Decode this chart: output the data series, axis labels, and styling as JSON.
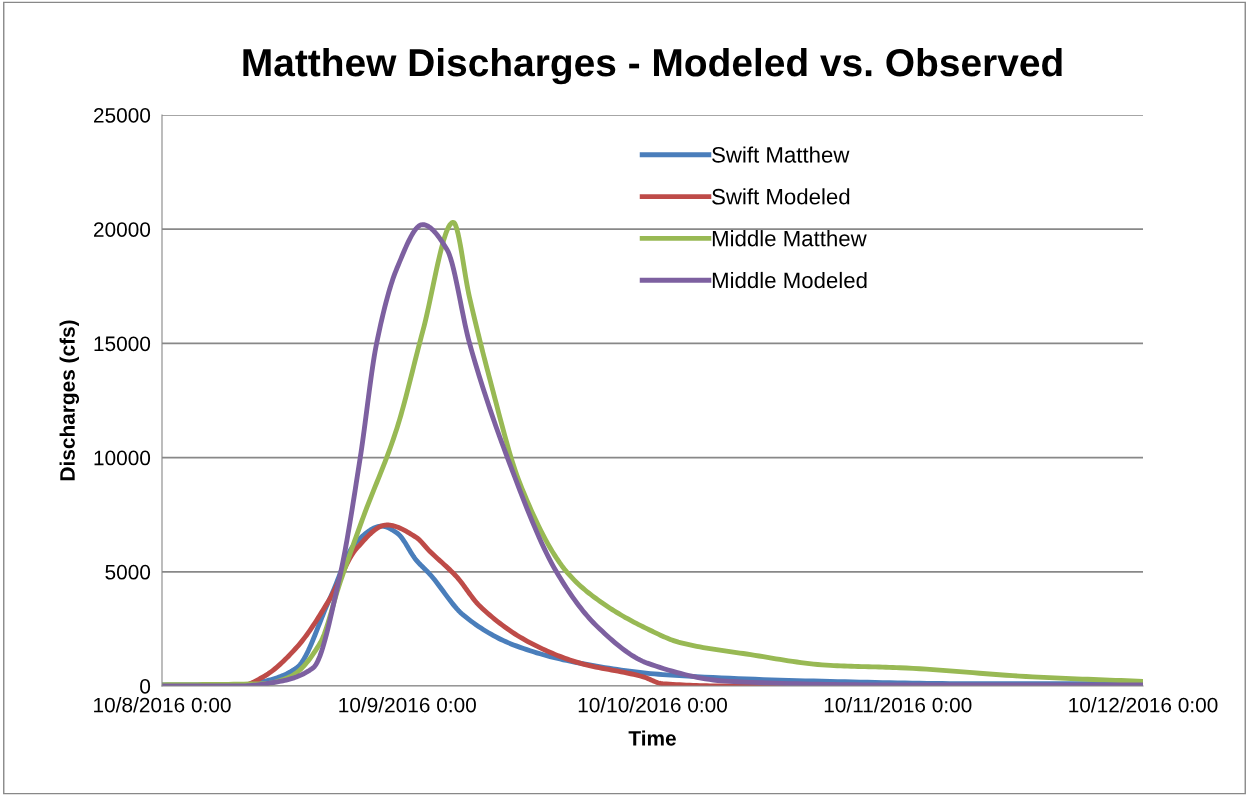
{
  "chart_data": {
    "type": "line",
    "title": "Matthew Discharges - Modeled vs. Observed",
    "xlabel": "Time",
    "ylabel": "Discharges (cfs)",
    "xlim": [
      "2016-10-08T00:00",
      "2016-10-12T00:00"
    ],
    "xticks": [
      {
        "value": "2016-10-08T00:00",
        "label": "10/8/2016 0:00"
      },
      {
        "value": "2016-10-09T00:00",
        "label": "10/9/2016 0:00"
      },
      {
        "value": "2016-10-10T00:00",
        "label": "10/10/2016 0:00"
      },
      {
        "value": "2016-10-11T00:00",
        "label": "10/11/2016 0:00"
      },
      {
        "value": "2016-10-12T00:00",
        "label": "10/12/2016 0:00"
      }
    ],
    "ylim": [
      0,
      25000
    ],
    "yticks": [
      0,
      5000,
      10000,
      15000,
      20000,
      25000
    ],
    "grid": "y",
    "legend": "top right",
    "marker": "none",
    "line_style": "solid",
    "series": [
      {
        "name": "Swift Matthew",
        "color": "#4a7ebb",
        "x": [
          "2016-10-08T00:00",
          "2016-10-08T08:00",
          "2016-10-08T10:00",
          "2016-10-08T13:12",
          "2016-10-08T16:24",
          "2016-10-08T19:00",
          "2016-10-08T21:30",
          "2016-10-08T23:00",
          "2016-10-09T00:54",
          "2016-10-09T02:12",
          "2016-10-09T05:30",
          "2016-10-09T10:24",
          "2016-10-09T16:54",
          "2016-10-10T01:00",
          "2016-10-10T17:24",
          "2016-10-11T08:00",
          "2016-10-12T00:00"
        ],
        "values": [
          50,
          50,
          200,
          800,
          3800,
          6300,
          7000,
          6700,
          5500,
          4900,
          3100,
          1800,
          1000,
          500,
          200,
          100,
          100
        ]
      },
      {
        "name": "Swift Modeled",
        "color": "#be4b48",
        "x": [
          "2016-10-08T00:00",
          "2016-10-08T08:00",
          "2016-10-08T09:54",
          "2016-10-08T13:12",
          "2016-10-08T16:24",
          "2016-10-08T19:00",
          "2016-10-08T22:00",
          "2016-10-09T00:54",
          "2016-10-09T02:12",
          "2016-10-09T04:48",
          "2016-10-09T07:06",
          "2016-10-09T12:00",
          "2016-10-09T16:54",
          "2016-10-09T23:06",
          "2016-10-10T01:00",
          "2016-10-10T07:36",
          "2016-10-12T00:00"
        ],
        "values": [
          0,
          50,
          400,
          1700,
          3800,
          6000,
          7050,
          6500,
          5900,
          4800,
          3500,
          1900,
          1000,
          400,
          100,
          0,
          0
        ]
      },
      {
        "name": "Middle Matthew",
        "color": "#98b954",
        "x": [
          "2016-10-08T00:00",
          "2016-10-08T10:00",
          "2016-10-08T12:30",
          "2016-10-08T15:30",
          "2016-10-08T17:24",
          "2016-10-08T19:42",
          "2016-10-08T23:00",
          "2016-10-09T01:30",
          "2016-10-09T04:30",
          "2016-10-09T06:06",
          "2016-10-09T08:06",
          "2016-10-09T11:00",
          "2016-10-09T15:36",
          "2016-10-09T19:12",
          "2016-10-09T23:30",
          "2016-10-10T02:42",
          "2016-10-10T09:12",
          "2016-10-10T17:24",
          "2016-10-11T00:12",
          "2016-10-11T13:12",
          "2016-10-12T00:00"
        ],
        "values": [
          50,
          100,
          400,
          1900,
          4500,
          7400,
          11300,
          15500,
          20300,
          17000,
          13400,
          8900,
          5000,
          3600,
          2500,
          1900,
          1400,
          900,
          800,
          400,
          200
        ]
      },
      {
        "name": "Middle Modeled",
        "color": "#7d60a0",
        "x": [
          "2016-10-08T00:00",
          "2016-10-08T07:36",
          "2016-10-08T11:30",
          "2016-10-08T14:48",
          "2016-10-08T17:24",
          "2016-10-08T19:24",
          "2016-10-08T21:00",
          "2016-10-08T23:00",
          "2016-10-09T01:30",
          "2016-10-09T03:54",
          "2016-10-09T06:06",
          "2016-10-09T09:48",
          "2016-10-09T14:36",
          "2016-10-09T18:36",
          "2016-10-09T23:30",
          "2016-10-10T07:36",
          "2016-10-10T22:00",
          "2016-10-12T00:00"
        ],
        "values": [
          0,
          0,
          200,
          800,
          4800,
          10000,
          15000,
          18300,
          20200,
          19100,
          15000,
          10000,
          5000,
          2600,
          1000,
          200,
          50,
          50
        ]
      }
    ]
  }
}
